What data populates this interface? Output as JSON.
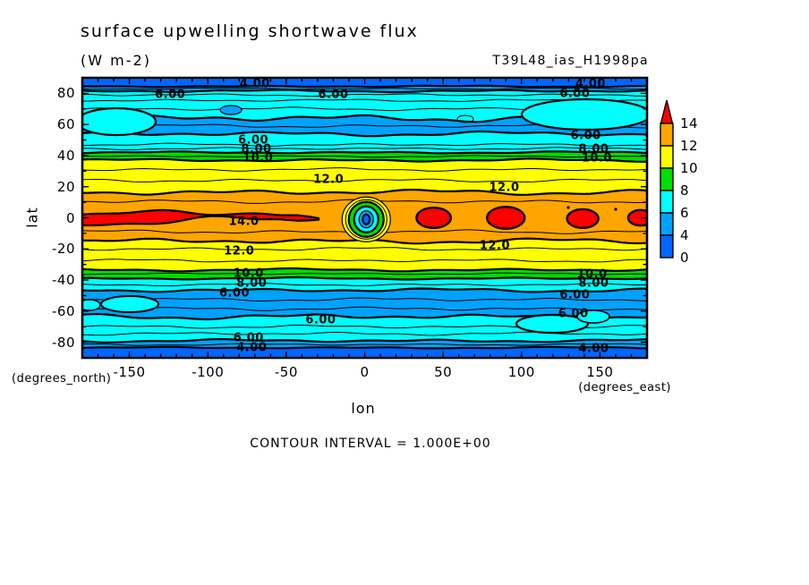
{
  "header": {
    "title": "surface upwelling shortwave flux",
    "units": "(W m-2)",
    "run_id": "T39L48_ias_H1998pa"
  },
  "axes": {
    "x": {
      "label": "lon",
      "unit": "(degrees_east)",
      "range": [
        -180,
        180
      ],
      "tick_labels": [
        "-150",
        "-100",
        "-50",
        "0",
        "50",
        "100",
        "150"
      ],
      "minor_step": 10
    },
    "y": {
      "label": "lat",
      "unit": "(degrees_north)",
      "range": [
        -90,
        90
      ],
      "tick_labels": [
        "80",
        "60",
        "40",
        "20",
        "0",
        "-20",
        "-40",
        "-60",
        "-80"
      ],
      "minor_step": 10
    }
  },
  "colorbar": {
    "labels": [
      "14",
      "12",
      "10",
      "8",
      "6",
      "4",
      "0"
    ],
    "blocks": [
      {
        "from": 12,
        "to": 14,
        "color": "#FFA500"
      },
      {
        "from": 10,
        "to": 12,
        "color": "#FFFF00"
      },
      {
        "from": 8,
        "to": 10,
        "color": "#00DD00"
      },
      {
        "from": 6,
        "to": 8,
        "color": "#00FFFF"
      },
      {
        "from": 4,
        "to": 6,
        "color": "#00A2FF"
      },
      {
        "from": 0,
        "to": 4,
        "color": "#0066FF"
      }
    ],
    "overflow_color": "#FF0000"
  },
  "footer": {
    "contour_interval_text": "CONTOUR INTERVAL = 1.000E+00"
  },
  "chart_data": {
    "type": "contour",
    "title": "surface upwelling shortwave flux",
    "units": "W m-2",
    "x": {
      "name": "lon",
      "min": -180,
      "max": 180
    },
    "y": {
      "name": "lat",
      "min": -90,
      "max": 90
    },
    "contour_interval": 1.0,
    "labeled_levels": [
      4,
      6,
      8,
      10,
      12,
      14
    ],
    "palette": {
      "lt4": "#0066FF",
      "c4_6": "#00A2FF",
      "c6_8": "#00FFFF",
      "c8_10": "#00DD00",
      "c10_12": "#FFFF00",
      "c12_14": "#FFA500",
      "gt14": "#FF0000"
    },
    "zonal_bands": [
      {
        "lat_from": 90,
        "lat_to": 84.5,
        "value_range": "<4",
        "color": "lt4"
      },
      {
        "lat_from": 84.5,
        "lat_to": 81.5,
        "value_range": "4-6",
        "color": "c4_6"
      },
      {
        "lat_from": 81.5,
        "lat_to": 64,
        "value_range": "6-8",
        "color": "c6_8"
      },
      {
        "lat_from": 64,
        "lat_to": 54,
        "value_range": "4-6",
        "color": "c4_6"
      },
      {
        "lat_from": 54,
        "lat_to": 42,
        "value_range": "6-8",
        "color": "c6_8"
      },
      {
        "lat_from": 42,
        "lat_to": 37,
        "value_range": "8-10",
        "color": "c8_10"
      },
      {
        "lat_from": 37,
        "lat_to": 16.5,
        "value_range": "10-12",
        "color": "c10_12"
      },
      {
        "lat_from": 16.5,
        "lat_to": -15,
        "value_range": "12-14",
        "color": "c12_14"
      },
      {
        "lat_from": -15,
        "lat_to": -33.5,
        "value_range": "10-12",
        "color": "c10_12"
      },
      {
        "lat_from": -33.5,
        "lat_to": -39,
        "value_range": "8-10",
        "color": "c8_10"
      },
      {
        "lat_from": -39,
        "lat_to": -46.5,
        "value_range": "6-8",
        "color": "c6_8"
      },
      {
        "lat_from": -46.5,
        "lat_to": -63.5,
        "value_range": "4-6",
        "color": "c4_6"
      },
      {
        "lat_from": -63.5,
        "lat_to": -79,
        "value_range": "6-8",
        "color": "c6_8"
      },
      {
        "lat_from": -79,
        "lat_to": -83.5,
        "value_range": "4-6",
        "color": "c4_6"
      },
      {
        "lat_from": -83.5,
        "lat_to": -90,
        "value_range": "<4",
        "color": "lt4"
      }
    ],
    "equatorial_maxima_gt14": [
      {
        "shape": "band",
        "lon_from": -180,
        "lon_to": -27,
        "lat_center": 0,
        "lat_halfwidth": 4
      },
      {
        "shape": "blob",
        "lon_from": 33,
        "lon_to": 55,
        "lat_center": 0,
        "lat_halfwidth": 6.5
      },
      {
        "shape": "blob",
        "lon_from": 78,
        "lon_to": 102,
        "lat_center": 0,
        "lat_halfwidth": 7
      },
      {
        "shape": "blob",
        "lon_from": 129,
        "lon_to": 149,
        "lat_center": -0.5,
        "lat_halfwidth": 6
      },
      {
        "shape": "blob",
        "lon_from": 168,
        "lon_to": 184,
        "lat_center": 0,
        "lat_halfwidth": 5
      }
    ],
    "closed_minimum_eye": {
      "lon": 1,
      "lat": -1,
      "core_range": "<4"
    },
    "contour_labels": [
      {
        "v": "4.00",
        "lon": -70,
        "lat": 86
      },
      {
        "v": "4.00",
        "lon": 144,
        "lat": 86
      },
      {
        "v": "6.00",
        "lon": -124,
        "lat": 79
      },
      {
        "v": "6.00",
        "lon": -20,
        "lat": 79
      },
      {
        "v": "6.00",
        "lon": 134,
        "lat": 79.5
      },
      {
        "v": "6.00",
        "lon": -71,
        "lat": 50
      },
      {
        "v": "8.00",
        "lon": -69,
        "lat": 44
      },
      {
        "v": "10.0",
        "lon": -68,
        "lat": 38
      },
      {
        "v": "6.00",
        "lon": 141,
        "lat": 52.5
      },
      {
        "v": "8.00",
        "lon": 146,
        "lat": 44
      },
      {
        "v": "10.0",
        "lon": 148,
        "lat": 38
      },
      {
        "v": "12.0",
        "lon": -23,
        "lat": 24.5
      },
      {
        "v": "12.0",
        "lon": 89,
        "lat": 19
      },
      {
        "v": "14.0",
        "lon": -77,
        "lat": -2.5
      },
      {
        "v": "12.0",
        "lon": -80,
        "lat": -21.5
      },
      {
        "v": "12.0",
        "lon": 83,
        "lat": -18
      },
      {
        "v": "10.0",
        "lon": -74,
        "lat": -36
      },
      {
        "v": "8.00",
        "lon": -72,
        "lat": -42.5
      },
      {
        "v": "10.0",
        "lon": 145,
        "lat": -36.5
      },
      {
        "v": "8.00",
        "lon": 146,
        "lat": -42.5
      },
      {
        "v": "6.00",
        "lon": -83,
        "lat": -48.5
      },
      {
        "v": "6.00",
        "lon": 134,
        "lat": -50
      },
      {
        "v": "6.00",
        "lon": -28,
        "lat": -66
      },
      {
        "v": "6.00",
        "lon": 133,
        "lat": -62
      },
      {
        "v": "6.00",
        "lon": -74,
        "lat": -77.5
      },
      {
        "v": "4.00",
        "lon": -72,
        "lat": -83.5
      },
      {
        "v": "4.00",
        "lon": 146,
        "lat": -84.5
      }
    ]
  }
}
